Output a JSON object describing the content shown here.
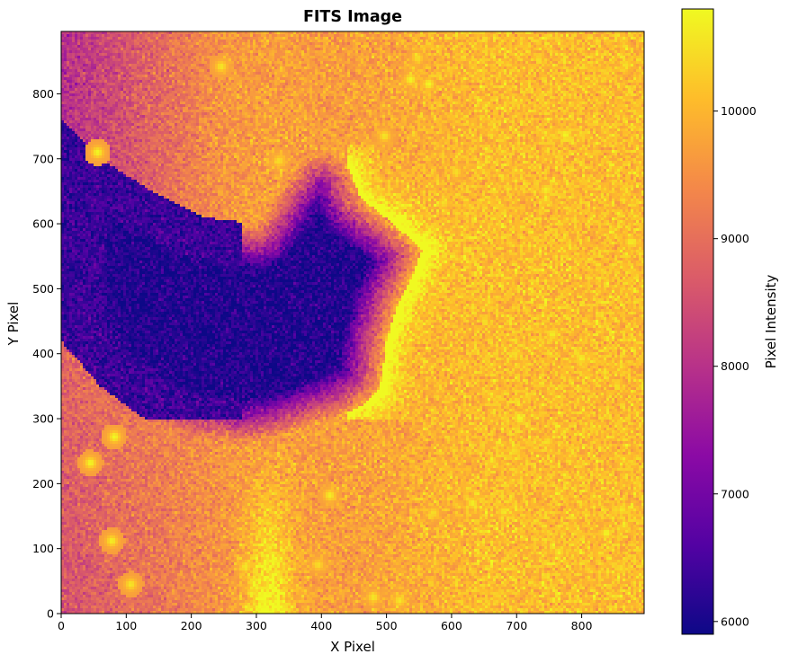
{
  "chart_data": {
    "type": "heatmap",
    "title": "FITS Image",
    "xlabel": "X Pixel",
    "ylabel": "Y Pixel",
    "xlim": [
      0,
      896
    ],
    "ylim": [
      0,
      896
    ],
    "x_ticks": [
      0,
      100,
      200,
      300,
      400,
      500,
      600,
      700,
      800
    ],
    "y_ticks": [
      0,
      100,
      200,
      300,
      400,
      500,
      600,
      700,
      800
    ],
    "colormap": "plasma",
    "colormap_colors": [
      "#0d0887",
      "#5302a3",
      "#8b0aa5",
      "#b83289",
      "#db5c68",
      "#f48849",
      "#febd2a",
      "#f0f921"
    ],
    "colorbar": {
      "label": "Pixel Intensity",
      "range": [
        5900,
        10800
      ],
      "ticks": [
        6000,
        7000,
        8000,
        9000,
        10000
      ]
    },
    "background_level": 9700,
    "features": {
      "dark_nebula_min_level": 6100,
      "bright_rim_level": 10600,
      "bright_column_level": 10300
    },
    "stars": [
      {
        "x": 537,
        "y": 822,
        "peak": 10800
      },
      {
        "x": 565,
        "y": 815,
        "peak": 10800
      },
      {
        "x": 775,
        "y": 737,
        "peak": 10800
      },
      {
        "x": 56,
        "y": 710,
        "peak": 10800
      },
      {
        "x": 745,
        "y": 652,
        "peak": 10700
      },
      {
        "x": 875,
        "y": 572,
        "peak": 10700
      },
      {
        "x": 755,
        "y": 430,
        "peak": 10700
      },
      {
        "x": 800,
        "y": 393,
        "peak": 10700
      },
      {
        "x": 705,
        "y": 300,
        "peak": 10800
      },
      {
        "x": 82,
        "y": 272,
        "peak": 10800
      },
      {
        "x": 45,
        "y": 232,
        "peak": 10800
      },
      {
        "x": 413,
        "y": 182,
        "peak": 10700
      },
      {
        "x": 632,
        "y": 170,
        "peak": 10700
      },
      {
        "x": 680,
        "y": 157,
        "peak": 10600
      },
      {
        "x": 838,
        "y": 124,
        "peak": 10800
      },
      {
        "x": 78,
        "y": 112,
        "peak": 10700
      },
      {
        "x": 765,
        "y": 95,
        "peak": 10600
      },
      {
        "x": 283,
        "y": 72,
        "peak": 10600
      },
      {
        "x": 107,
        "y": 45,
        "peak": 10600
      },
      {
        "x": 480,
        "y": 25,
        "peak": 10600
      },
      {
        "x": 520,
        "y": 20,
        "peak": 10600
      },
      {
        "x": 246,
        "y": 842,
        "peak": 10600
      },
      {
        "x": 497,
        "y": 735,
        "peak": 10600
      },
      {
        "x": 335,
        "y": 697,
        "peak": 10500
      },
      {
        "x": 607,
        "y": 680,
        "peak": 10500
      },
      {
        "x": 862,
        "y": 160,
        "peak": 10600
      },
      {
        "x": 748,
        "y": 265,
        "peak": 10500
      },
      {
        "x": 696,
        "y": 250,
        "peak": 10500
      },
      {
        "x": 572,
        "y": 155,
        "peak": 10500
      },
      {
        "x": 697,
        "y": 400,
        "peak": 10500
      },
      {
        "x": 860,
        "y": 70,
        "peak": 10500
      },
      {
        "x": 395,
        "y": 75,
        "peak": 10500
      },
      {
        "x": 548,
        "y": 855,
        "peak": 10500
      },
      {
        "x": 868,
        "y": 845,
        "peak": 10500
      },
      {
        "x": 588,
        "y": 632,
        "peak": 10500
      }
    ]
  }
}
